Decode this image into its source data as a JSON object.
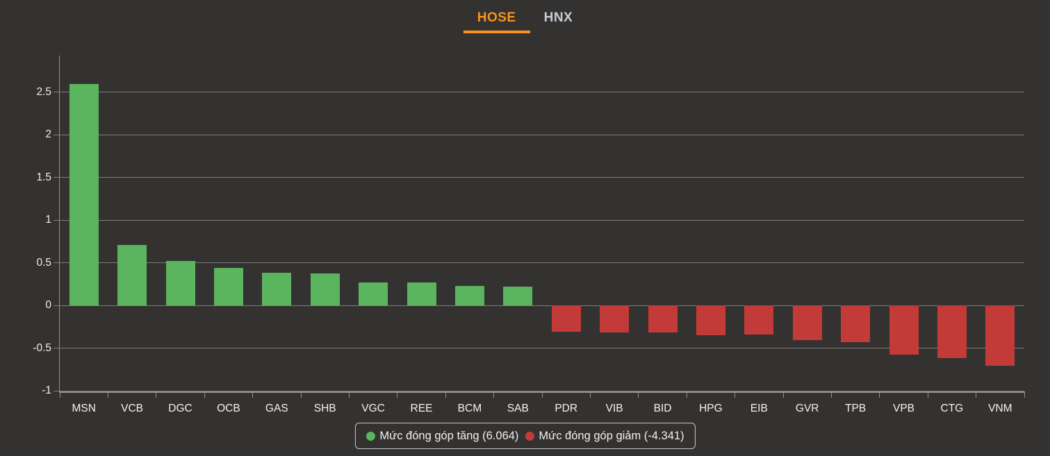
{
  "tabs": [
    {
      "label": "HOSE",
      "active": true
    },
    {
      "label": "HNX",
      "active": false
    }
  ],
  "legend": {
    "increase_label": "Mức đóng góp tăng (6.064)",
    "decrease_label": "Mức đóng góp giảm (-4.341)"
  },
  "colors": {
    "background": "#333231",
    "accent_orange": "#f7941e",
    "tab_inactive": "#c9ccd2",
    "green": "#5bb45e",
    "red": "#c23b38",
    "grid": "#7f7d78",
    "axis": "#93918c",
    "text": "#f2f1ef"
  },
  "chart_data": {
    "type": "bar",
    "title": "",
    "xlabel": "",
    "ylabel": "",
    "categories": [
      "MSN",
      "VCB",
      "DGC",
      "OCB",
      "GAS",
      "SHB",
      "VGC",
      "REE",
      "BCM",
      "SAB",
      "PDR",
      "VIB",
      "BID",
      "HPG",
      "EIB",
      "GVR",
      "TPB",
      "VPB",
      "CTG",
      "VNM"
    ],
    "values": [
      2.59,
      0.71,
      0.52,
      0.44,
      0.38,
      0.37,
      0.27,
      0.27,
      0.23,
      0.22,
      -0.31,
      -0.32,
      -0.32,
      -0.35,
      -0.34,
      -0.41,
      -0.43,
      -0.58,
      -0.62,
      -0.71
    ],
    "series": [
      {
        "name": "Mức đóng góp tăng",
        "total": 6.064,
        "color": "#5bb45e"
      },
      {
        "name": "Mức đóng góp giảm",
        "total": -4.341,
        "color": "#c23b38"
      }
    ],
    "yticks": [
      2.5,
      2,
      1.5,
      1,
      0.5,
      0,
      -0.5,
      -1
    ],
    "ylim": [
      -1.02,
      2.92
    ],
    "grid": true,
    "legend_position": "bottom"
  }
}
